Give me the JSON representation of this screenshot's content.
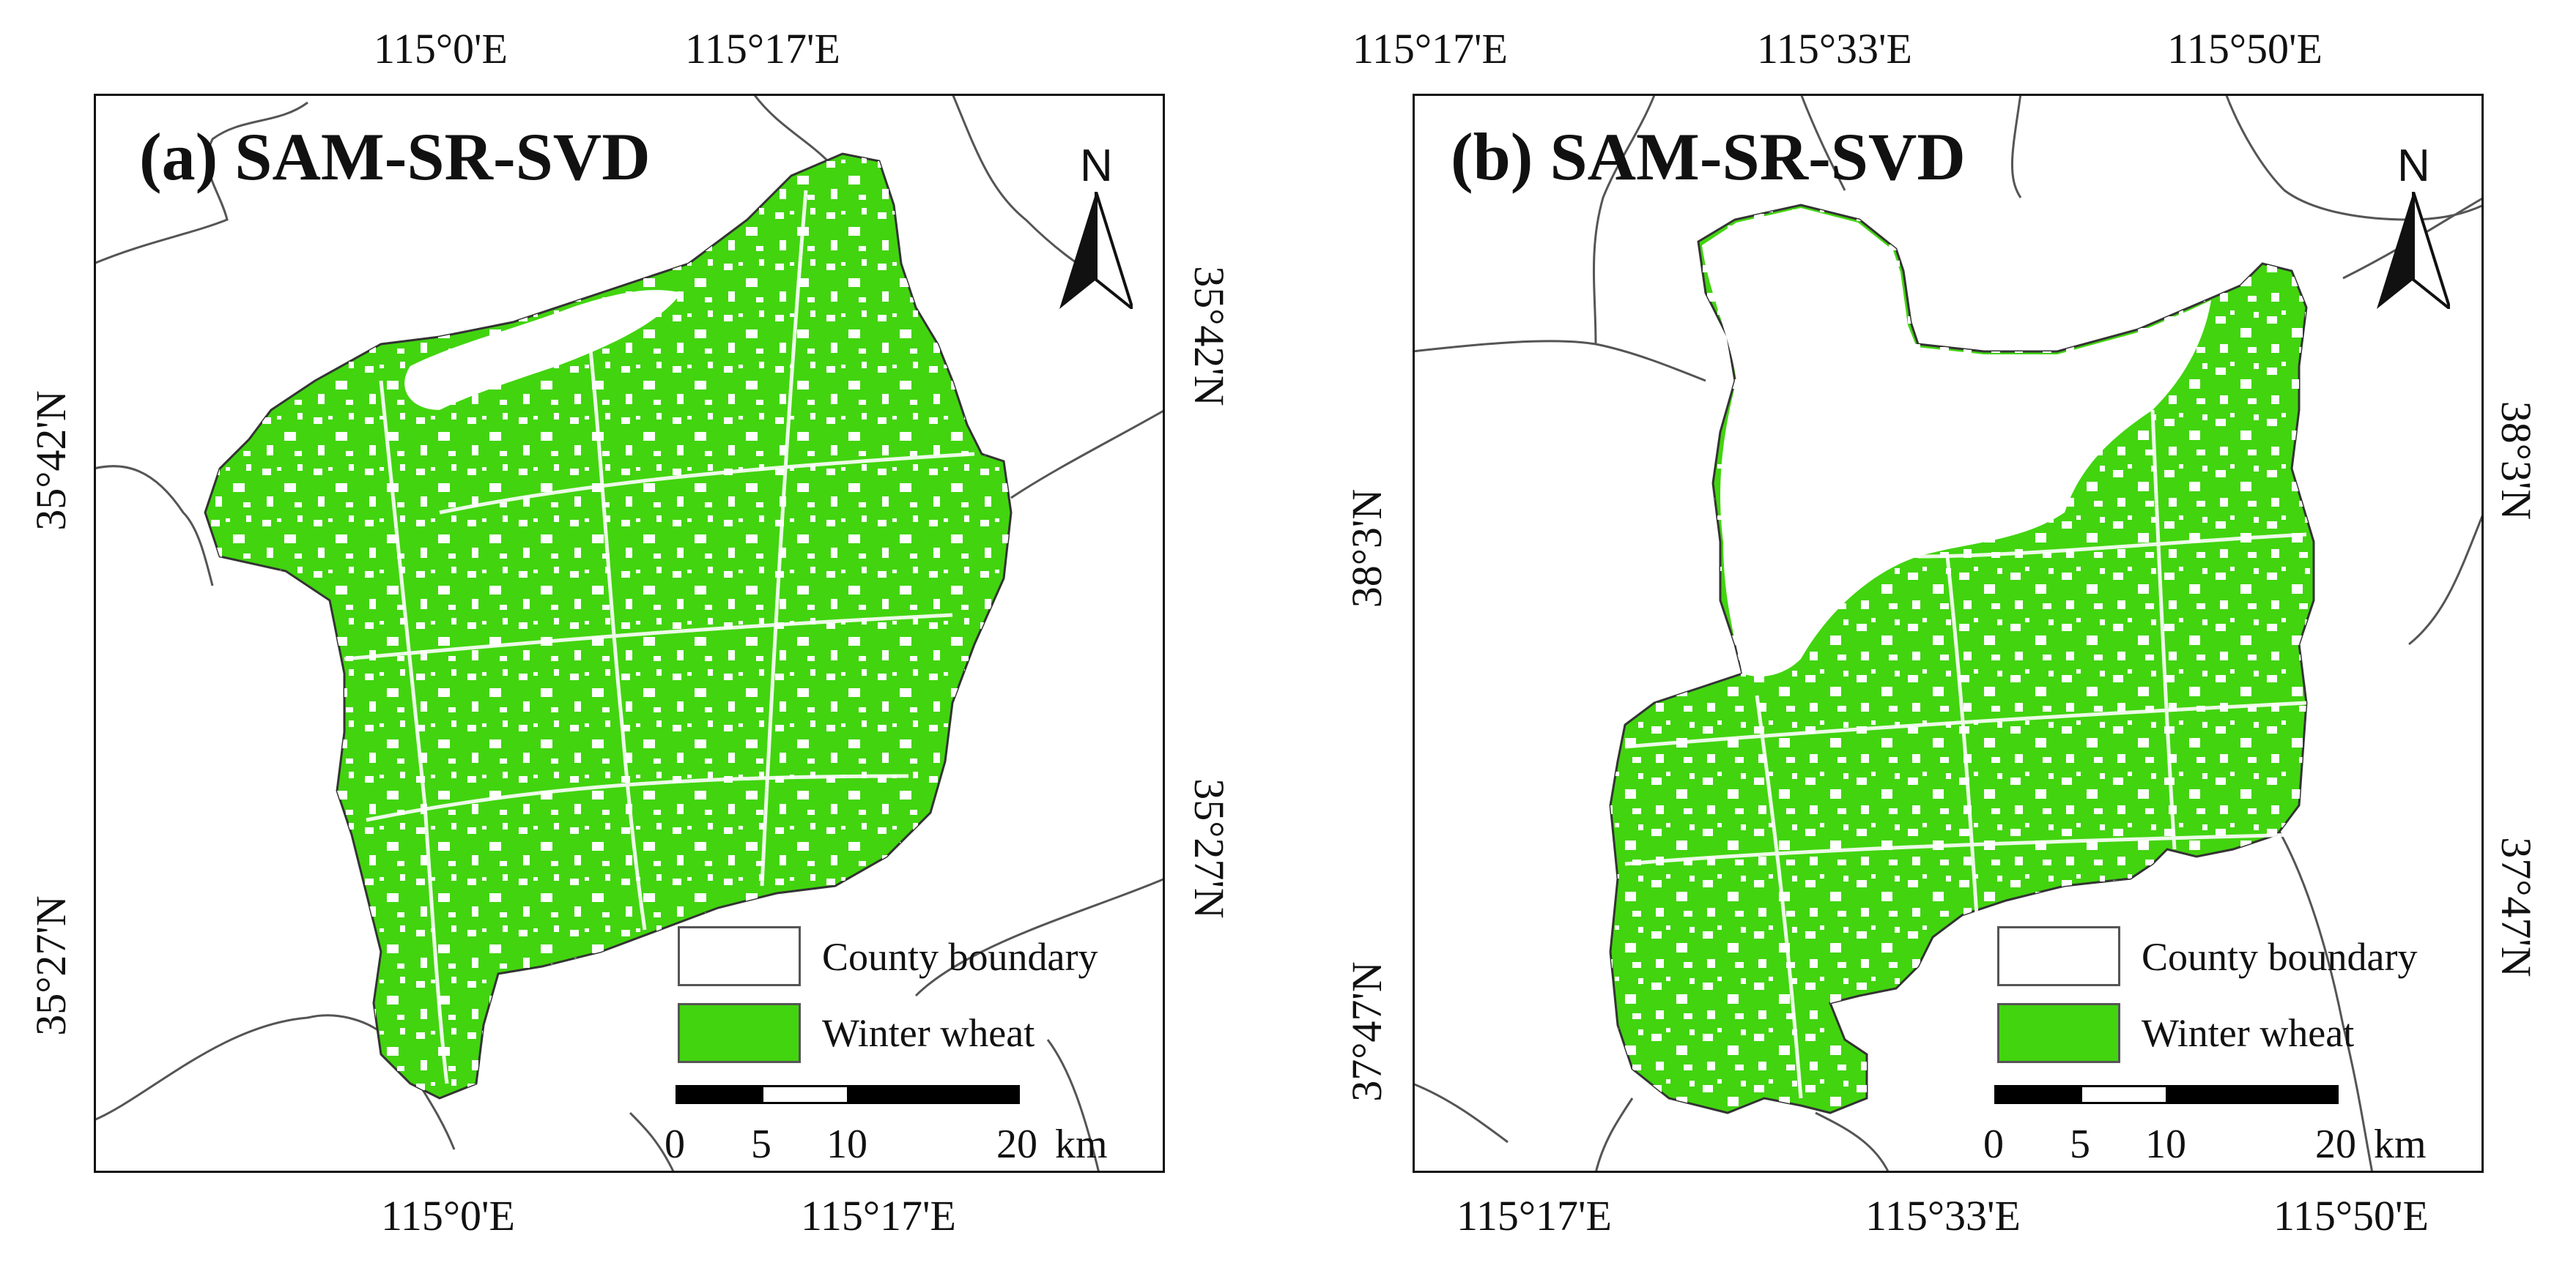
{
  "colors": {
    "wheat": "#42d40f",
    "boundary_line": "#555555",
    "frame": "#111111",
    "background": "#ffffff"
  },
  "panel_a": {
    "title": "(a) SAM-SR-SVD",
    "top_ticks": [
      "115°0'E",
      "115°17'E"
    ],
    "bottom_ticks": [
      "115°0'E",
      "115°17'E"
    ],
    "left_ticks": [
      "35°42'N",
      "35°27'N"
    ],
    "right_ticks": [
      "35°42'N",
      "35°27'N"
    ],
    "north_label": "N",
    "legend": [
      {
        "label": "County boundary",
        "color": "#ffffff"
      },
      {
        "label": "Winter wheat",
        "color": "#42d40f"
      }
    ],
    "scale": {
      "labels": [
        "0",
        "5",
        "10",
        "20"
      ],
      "unit": "km"
    }
  },
  "panel_b": {
    "title": "(b) SAM-SR-SVD",
    "top_ticks": [
      "115°17'E",
      "115°33'E",
      "115°50'E"
    ],
    "bottom_ticks": [
      "115°17'E",
      "115°33'E",
      "115°50'E"
    ],
    "left_ticks": [
      "38°3'N",
      "37°47'N"
    ],
    "right_ticks": [
      "38°3'N",
      "37°47'N"
    ],
    "north_label": "N",
    "legend": [
      {
        "label": "County boundary",
        "color": "#ffffff"
      },
      {
        "label": "Winter wheat",
        "color": "#42d40f"
      }
    ],
    "scale": {
      "labels": [
        "0",
        "5",
        "10",
        "20"
      ],
      "unit": "km"
    }
  }
}
